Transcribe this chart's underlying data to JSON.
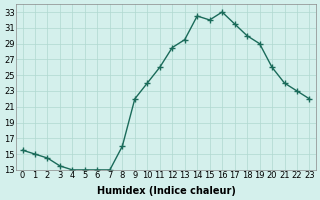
{
  "x": [
    0,
    1,
    2,
    3,
    4,
    5,
    6,
    7,
    8,
    9,
    10,
    11,
    12,
    13,
    14,
    15,
    16,
    17,
    18,
    19,
    20,
    21,
    22,
    23
  ],
  "y": [
    15.5,
    15.0,
    14.5,
    13.5,
    13.0,
    13.0,
    13.0,
    13.0,
    16.0,
    22.0,
    24.0,
    26.0,
    28.5,
    29.5,
    32.5,
    32.0,
    33.0,
    31.5,
    30.0,
    29.0,
    26.0,
    24.0,
    23.0,
    22.0
  ],
  "line_color": "#1a6b5a",
  "marker": "+",
  "marker_size": 4,
  "bg_color": "#d4f0ec",
  "grid_color": "#b0d8d0",
  "xlabel": "Humidex (Indice chaleur)",
  "ylim": [
    13,
    34
  ],
  "xlim_min": -0.5,
  "xlim_max": 23.5,
  "yticks": [
    13,
    15,
    17,
    19,
    21,
    23,
    25,
    27,
    29,
    31,
    33
  ],
  "xticks": [
    0,
    1,
    2,
    3,
    4,
    5,
    6,
    7,
    8,
    9,
    10,
    11,
    12,
    13,
    14,
    15,
    16,
    17,
    18,
    19,
    20,
    21,
    22,
    23
  ],
  "xtick_labels": [
    "0",
    "1",
    "2",
    "3",
    "4",
    "5",
    "6",
    "7",
    "8",
    "9",
    "10",
    "11",
    "12",
    "13",
    "14",
    "15",
    "16",
    "17",
    "18",
    "19",
    "20",
    "21",
    "22",
    "23"
  ],
  "xlabel_fontsize": 7,
  "tick_fontsize": 6
}
